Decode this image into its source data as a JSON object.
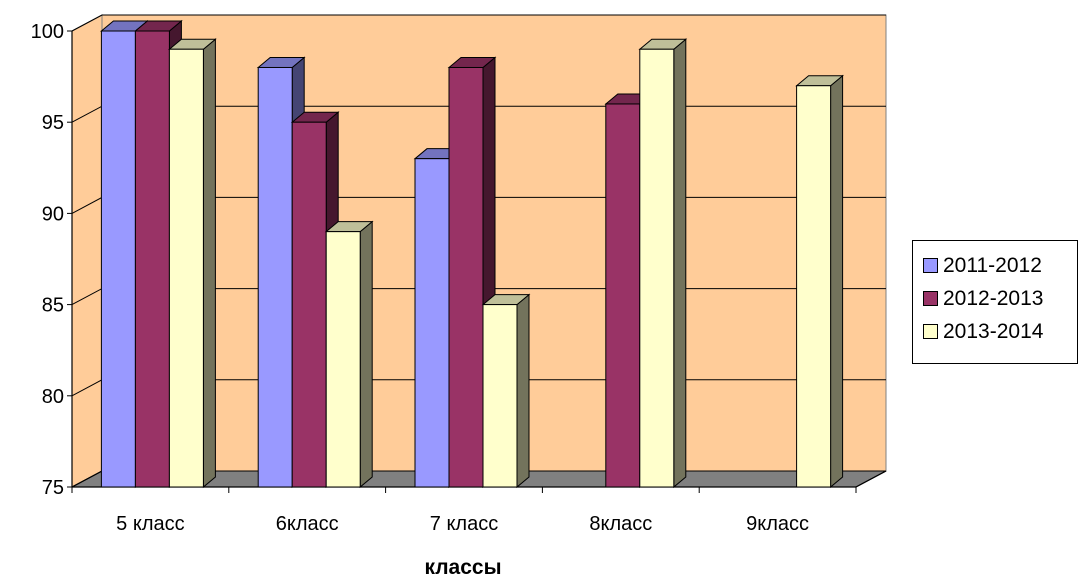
{
  "chart_data": {
    "type": "bar",
    "categories": [
      "5 класс",
      "6класс",
      "7 класс",
      "8класс",
      "9класс"
    ],
    "series": [
      {
        "name": "2011-2012",
        "color": "#9999ff",
        "values": [
          100,
          98,
          93,
          null,
          null
        ]
      },
      {
        "name": "2012-2013",
        "color": "#993366",
        "values": [
          100,
          95,
          98,
          96,
          null
        ]
      },
      {
        "name": "2013-2014",
        "color": "#ffffcc",
        "values": [
          99,
          89,
          85,
          99,
          97
        ]
      }
    ],
    "title": "",
    "xlabel": "классы",
    "ylabel": "",
    "ylim": [
      75,
      100
    ],
    "yticks": [
      75,
      80,
      85,
      90,
      95,
      100
    ],
    "grid": true,
    "legend_position": "right",
    "background_color": "#ffcc99",
    "floor_color": "#808080",
    "style": "3d-clustered-column"
  }
}
